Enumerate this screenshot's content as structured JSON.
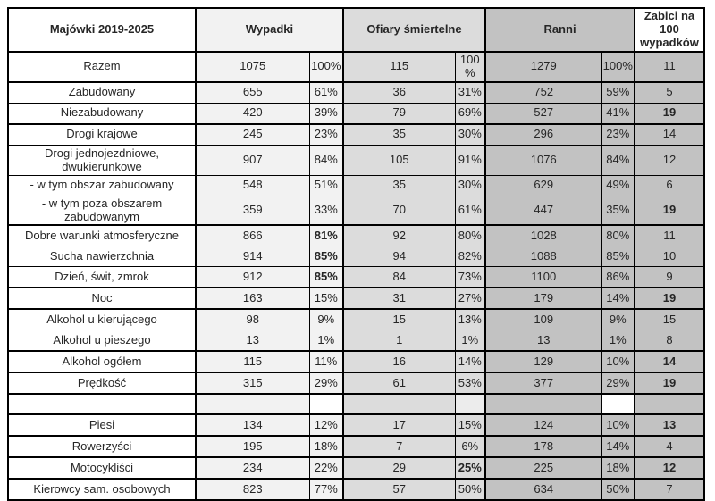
{
  "table": {
    "header": {
      "label": "Majówki 2019-2025",
      "wypadki": "Wypadki",
      "ofiary": "Ofiary śmiertelne",
      "ranni": "Ranni",
      "zabici": "Zabici na 100 wypadków"
    },
    "columns": [
      "label",
      "wypadki_count",
      "wypadki_percent",
      "ofiary_count",
      "ofiary_percent",
      "ranni_count",
      "ranni_percent",
      "zabici_na_100"
    ],
    "rows": [
      {
        "label": "Razem",
        "cells": [
          "1075",
          "100%",
          "115",
          "100 %",
          "1279",
          "100%",
          "11"
        ],
        "bold": [],
        "thick": true,
        "empty": false
      },
      {
        "label": "Zabudowany",
        "cells": [
          "655",
          "61%",
          "36",
          "31%",
          "752",
          "59%",
          "5"
        ],
        "bold": [],
        "thick": false,
        "empty": false
      },
      {
        "label": "Niezabudowany",
        "cells": [
          "420",
          "39%",
          "79",
          "69%",
          "527",
          "41%",
          "19"
        ],
        "bold": [
          6
        ],
        "thick": true,
        "empty": false
      },
      {
        "label": "Drogi krajowe",
        "cells": [
          "245",
          "23%",
          "35",
          "30%",
          "296",
          "23%",
          "14"
        ],
        "bold": [],
        "thick": true,
        "empty": false
      },
      {
        "label": "Drogi jednojezdniowe, dwukierunkowe",
        "cells": [
          "907",
          "84%",
          "105",
          "91%",
          "1076",
          "84%",
          "12"
        ],
        "bold": [],
        "thick": false,
        "empty": false
      },
      {
        "label": "- w tym obszar zabudowany",
        "cells": [
          "548",
          "51%",
          "35",
          "30%",
          "629",
          "49%",
          "6"
        ],
        "bold": [],
        "thick": false,
        "empty": false
      },
      {
        "label": "- w tym poza obszarem zabudowanym",
        "cells": [
          "359",
          "33%",
          "70",
          "61%",
          "447",
          "35%",
          "19"
        ],
        "bold": [
          6
        ],
        "thick": true,
        "empty": false
      },
      {
        "label": "Dobre warunki atmosferyczne",
        "cells": [
          "866",
          "81%",
          "92",
          "80%",
          "1028",
          "80%",
          "11"
        ],
        "bold": [
          1
        ],
        "thick": false,
        "empty": false
      },
      {
        "label": "Sucha nawierzchnia",
        "cells": [
          "914",
          "85%",
          "94",
          "82%",
          "1088",
          "85%",
          "10"
        ],
        "bold": [
          1
        ],
        "thick": false,
        "empty": false
      },
      {
        "label": "Dzień, świt, zmrok",
        "cells": [
          "912",
          "85%",
          "84",
          "73%",
          "1100",
          "86%",
          "9"
        ],
        "bold": [
          1
        ],
        "thick": true,
        "empty": false
      },
      {
        "label": "Noc",
        "cells": [
          "163",
          "15%",
          "31",
          "27%",
          "179",
          "14%",
          "19"
        ],
        "bold": [
          6
        ],
        "thick": true,
        "empty": false
      },
      {
        "label": "Alkohol u kierującego",
        "cells": [
          "98",
          "9%",
          "15",
          "13%",
          "109",
          "9%",
          "15"
        ],
        "bold": [],
        "thick": false,
        "empty": false
      },
      {
        "label": "Alkohol u pieszego",
        "cells": [
          "13",
          "1%",
          "1",
          "1%",
          "13",
          "1%",
          "8"
        ],
        "bold": [],
        "thick": true,
        "empty": false
      },
      {
        "label": "Alkohol ogółem",
        "cells": [
          "115",
          "11%",
          "16",
          "14%",
          "129",
          "10%",
          "14"
        ],
        "bold": [
          6
        ],
        "thick": true,
        "empty": false
      },
      {
        "label": "Prędkość",
        "cells": [
          "315",
          "29%",
          "61",
          "53%",
          "377",
          "29%",
          "19"
        ],
        "bold": [
          6
        ],
        "thick": true,
        "empty": false
      },
      {
        "label": "",
        "cells": [
          "",
          "",
          "",
          "",
          "",
          "",
          ""
        ],
        "bold": [],
        "thick": true,
        "empty": true
      },
      {
        "label": "Piesi",
        "cells": [
          "134",
          "12%",
          "17",
          "15%",
          "124",
          "10%",
          "13"
        ],
        "bold": [
          6
        ],
        "thick": true,
        "empty": false
      },
      {
        "label": "Rowerzyści",
        "cells": [
          "195",
          "18%",
          "7",
          "6%",
          "178",
          "14%",
          "4"
        ],
        "bold": [],
        "thick": true,
        "empty": false
      },
      {
        "label": "Motocykliści",
        "cells": [
          "234",
          "22%",
          "29",
          "25%",
          "225",
          "18%",
          "12"
        ],
        "bold": [
          3,
          6
        ],
        "thick": true,
        "empty": false
      },
      {
        "label": "Kierowcy sam. osobowych",
        "cells": [
          "823",
          "77%",
          "57",
          "50%",
          "634",
          "50%",
          "7"
        ],
        "bold": [],
        "thick": true,
        "empty": false
      }
    ]
  },
  "colors": {
    "border": "#000000",
    "text": "#262626",
    "label_column_bg": "#ffffff",
    "wypadki_bg": "#f2f2f2",
    "ofiary_bg": "#dcdcdc",
    "ranni_bg": "#c2c2c2",
    "zabici_cell_bg": "#c2c2c2",
    "zabici_header_bg": "#ffffff"
  }
}
